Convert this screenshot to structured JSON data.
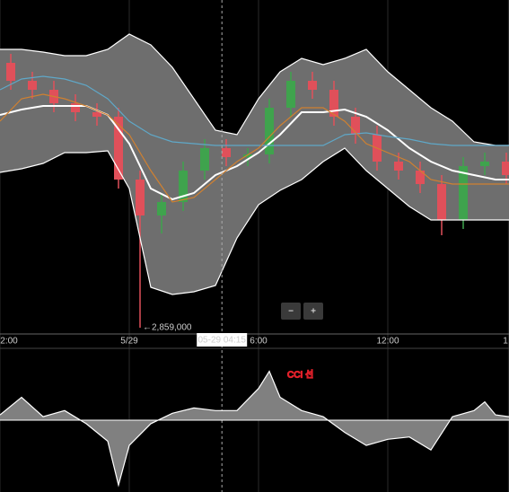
{
  "chart_data": [
    {
      "type": "candlestick",
      "x": [
        0.5,
        1.5,
        2.5,
        3.5,
        4.5,
        5.5,
        6.5,
        7.5,
        8.5,
        9.5,
        10.5,
        11.5,
        12.5,
        13.5,
        14.5,
        15.5,
        16.5,
        17.5,
        18.5,
        19.5,
        20.5,
        21.5,
        22.5,
        23.5
      ],
      "open": [
        3154000,
        3134000,
        3124000,
        3109000,
        3099000,
        3094000,
        3024000,
        2984000,
        2999000,
        3034000,
        3059000,
        3049000,
        3052000,
        3104000,
        3134000,
        3124000,
        3094000,
        3074000,
        3044000,
        3034000,
        3019000,
        2979000,
        3039000,
        3044000
      ],
      "high": [
        3164000,
        3144000,
        3134000,
        3119000,
        3109000,
        3104000,
        3034000,
        3009000,
        3044000,
        3069000,
        3069000,
        3059000,
        3114000,
        3144000,
        3144000,
        3134000,
        3104000,
        3084000,
        3054000,
        3044000,
        3029000,
        3049000,
        3054000,
        3054000
      ],
      "low": [
        3124000,
        3114000,
        3099000,
        3089000,
        3084000,
        3014000,
        2859000,
        2964000,
        2989000,
        3024000,
        3039000,
        3039000,
        3042000,
        3094000,
        3114000,
        3084000,
        3064000,
        3034000,
        3024000,
        3009000,
        2962000,
        2969000,
        3029000,
        3019000
      ],
      "close": [
        3134000,
        3124000,
        3109000,
        3099000,
        3094000,
        3024000,
        2984000,
        2999000,
        3034000,
        3059000,
        3049000,
        3052000,
        3104000,
        3134000,
        3124000,
        3094000,
        3074000,
        3044000,
        3034000,
        3019000,
        2979000,
        3039000,
        3044000,
        3029000
      ],
      "up_color": "#3fa34d",
      "down_color": "#e0505a",
      "min_label": "←2,859,000",
      "line_x": [
        0,
        1,
        2,
        3,
        4,
        5,
        6,
        7,
        8,
        9,
        10,
        11,
        12,
        13,
        14,
        15,
        16,
        17,
        18,
        19,
        20,
        21,
        22,
        23,
        23.625
      ],
      "band_fill": "#6e6e6e",
      "overlays": [
        {
          "color": "#ffffff",
          "values": [
            3169000,
            3169000,
            3166000,
            3162000,
            3162000,
            3169000,
            3186000,
            3174000,
            3149000,
            3114000,
            3079000,
            3074000,
            3114000,
            3144000,
            3159000,
            3152000,
            3159000,
            3169000,
            3144000,
            3124000,
            3104000,
            3089000,
            3066000,
            3062000,
            3062000
          ]
        },
        {
          "color": "#ffffff",
          "values": [
            3032000,
            3036000,
            3042000,
            3054000,
            3054000,
            3056000,
            3014000,
            2904000,
            2896000,
            2899000,
            2906000,
            2959000,
            2996000,
            3012000,
            3024000,
            3044000,
            3059000,
            3034000,
            3014000,
            2994000,
            2979000,
            2979000,
            2979000,
            2979000,
            2979000
          ]
        },
        {
          "color": "#ffffff",
          "values": [
            3096000,
            3102000,
            3106000,
            3106000,
            3106000,
            3096000,
            3064000,
            3014000,
            3002000,
            3009000,
            3029000,
            3039000,
            3054000,
            3074000,
            3099000,
            3099000,
            3102000,
            3094000,
            3079000,
            3059000,
            3044000,
            3034000,
            3029000,
            3024000,
            3024000
          ]
        },
        {
          "color": "#5fa8c8",
          "values": [
            3124000,
            3136000,
            3139000,
            3136000,
            3129000,
            3114000,
            3089000,
            3074000,
            3066000,
            3064000,
            3062000,
            3062000,
            3062000,
            3062000,
            3062000,
            3062000,
            3074000,
            3076000,
            3072000,
            3069000,
            3064000,
            3062000,
            3062000,
            3062000,
            3062000
          ]
        },
        {
          "color": "#d08030",
          "values": [
            3089000,
            3114000,
            3119000,
            3114000,
            3106000,
            3096000,
            3074000,
            3034000,
            2999000,
            3004000,
            3024000,
            3044000,
            3059000,
            3084000,
            3104000,
            3104000,
            3089000,
            3064000,
            3054000,
            3044000,
            3024000,
            3019000,
            3019000,
            3019000,
            3019000
          ]
        }
      ],
      "xlim": [
        0,
        23.625
      ],
      "xticks": [
        {
          "value": 0,
          "label": "2:00"
        },
        {
          "value": 6,
          "label": "5/29"
        },
        {
          "value": 12,
          "label": "6:00"
        },
        {
          "value": 18,
          "label": "12:00"
        },
        {
          "value": 23.6,
          "label": "1"
        }
      ],
      "ylim": [
        2852000,
        3224000
      ],
      "crosshair": {
        "x": 10.3,
        "label": "05-29 04:15"
      }
    },
    {
      "type": "line",
      "x": [
        0,
        1,
        2,
        3,
        4,
        5,
        5.5,
        6,
        7,
        8,
        9,
        10,
        11,
        12,
        12.5,
        13,
        14,
        15,
        16,
        17,
        18,
        19,
        20,
        21,
        22,
        22.5,
        23,
        23.625
      ],
      "values": [
        20,
        86,
        13,
        36,
        -13,
        -79,
        -244,
        -95,
        -13,
        26,
        46,
        36,
        36,
        119,
        184,
        86,
        36,
        13,
        -46,
        -95,
        -72,
        -63,
        -112,
        13,
        36,
        69,
        20,
        13
      ],
      "color": "#ffffff",
      "fill": "#808080",
      "xlim": [
        0,
        23.625
      ],
      "ylim": [
        -270,
        270
      ],
      "annotation": "CCI 선",
      "annotation_color": "#e0202a"
    }
  ],
  "controls": [
    "−",
    "+"
  ]
}
